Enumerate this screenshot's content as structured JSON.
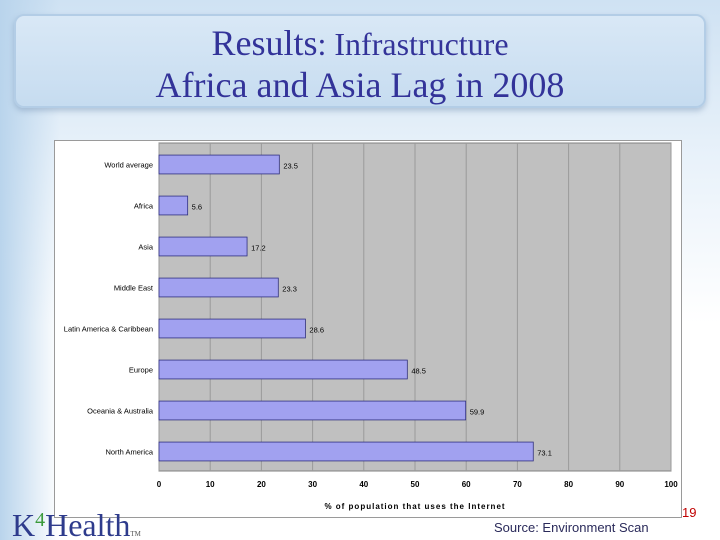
{
  "slide": {
    "title_main": "Results",
    "title_sub": ": Infrastructure",
    "title_line2": "Africa and Asia Lag in 2008",
    "page_number": "19",
    "source": "Source: Environment Scan",
    "logo_k": "K",
    "logo_four": "4",
    "logo_rest": "Health",
    "logo_tm": "TM"
  },
  "chart_data": {
    "type": "bar",
    "orientation": "horizontal",
    "categories": [
      "World average",
      "Africa",
      "Asia",
      "Middle East",
      "Latin America & Caribbean",
      "Europe",
      "Oceania & Australia",
      "North America"
    ],
    "values": [
      23.5,
      5.6,
      17.2,
      23.3,
      28.6,
      48.5,
      59.9,
      73.1
    ],
    "value_labels": [
      "23.5",
      "5.6",
      "17.2",
      "23.3",
      "28.6",
      "48.5",
      "59.9",
      "73.1"
    ],
    "xlabel": "% of population that uses the Internet",
    "xlim": [
      0,
      100
    ],
    "x_ticks": [
      "0",
      "10",
      "20",
      "30",
      "40",
      "50",
      "60",
      "70",
      "80",
      "90",
      "100"
    ],
    "grid": true,
    "bar_color": "#a1a1f0",
    "bar_edge_color": "#303080",
    "plot_background": "#c0c0c0"
  }
}
